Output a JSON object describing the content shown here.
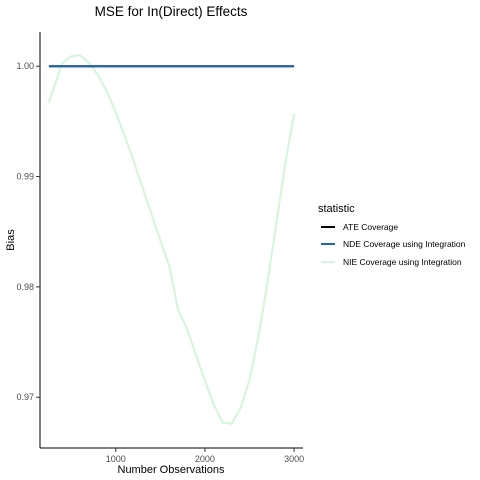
{
  "chart_data": {
    "type": "line",
    "title": "MSE for In(Direct) Effects",
    "xlabel": "Number Observations",
    "ylabel": "Bias",
    "xlim": [
      150,
      3100
    ],
    "ylim": [
      0.9654,
      1.0031
    ],
    "x_ticks": [
      1000,
      2000,
      3000
    ],
    "x_tick_labels": [
      "1000",
      "2000",
      "3000"
    ],
    "y_ticks": [
      0.97,
      0.98,
      0.99,
      1.0
    ],
    "y_tick_labels": [
      "0.97",
      "0.98",
      "0.99",
      "1.00"
    ],
    "grid": false,
    "legend": {
      "title": "statistic",
      "position": "right"
    },
    "series": [
      {
        "name": "ATE Coverage",
        "color": "#000000",
        "x": [
          250,
          3000
        ],
        "y": [
          1.0,
          1.0
        ]
      },
      {
        "name": "NDE Coverage using Integration",
        "color": "#2166ac",
        "x": [
          250,
          3000
        ],
        "y": [
          1.0,
          1.0
        ]
      },
      {
        "name": "NIE Coverage using Integration",
        "color": "#d4f5dc",
        "x": [
          250,
          400,
          500,
          600,
          700,
          800,
          900,
          1000,
          1100,
          1200,
          1300,
          1400,
          1500,
          1600,
          1700,
          1800,
          1900,
          2000,
          2100,
          2200,
          2300,
          2400,
          2500,
          2600,
          2700,
          2800,
          2900,
          3000
        ],
        "y": [
          0.9967,
          1.0003,
          1.0009,
          1.001,
          1.0003,
          0.9992,
          0.9977,
          0.9958,
          0.9937,
          0.9914,
          0.989,
          0.9866,
          0.9842,
          0.9819,
          0.9779,
          0.9762,
          0.9738,
          0.9715,
          0.9693,
          0.9677,
          0.9676,
          0.969,
          0.9716,
          0.9755,
          0.9803,
          0.9857,
          0.9911,
          0.9957
        ]
      }
    ]
  }
}
